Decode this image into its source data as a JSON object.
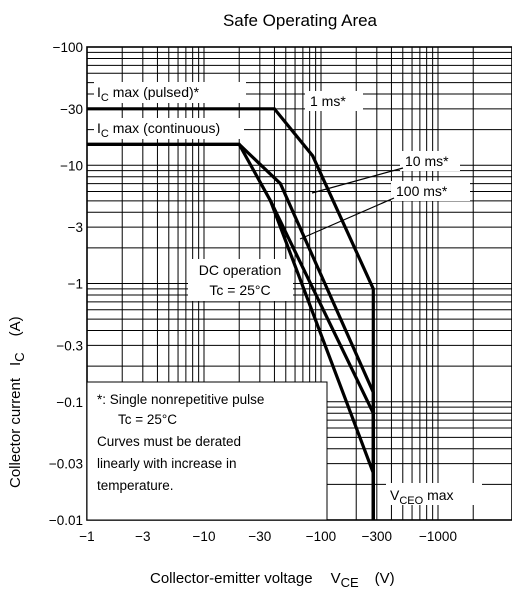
{
  "chart_data": {
    "type": "line",
    "title": "Safe Operating Area",
    "xlabel": {
      "main": "Collector-emitter voltage",
      "symbol": "V",
      "sub": "CE",
      "unit": "(V)"
    },
    "ylabel": {
      "main": "Collector current",
      "symbol": "I",
      "sub": "C",
      "unit": "(A)"
    },
    "x_scale": "log",
    "y_scale": "log",
    "xlim": [
      -1,
      -2000
    ],
    "ylim": [
      -0.01,
      -100
    ],
    "grid": true,
    "x_ticks": [
      {
        "value": -1,
        "label": "−1"
      },
      {
        "value": -3,
        "label": "−3"
      },
      {
        "value": -10,
        "label": "−10"
      },
      {
        "value": -30,
        "label": "−30"
      },
      {
        "value": -100,
        "label": "−100"
      },
      {
        "value": -300,
        "label": "−300"
      },
      {
        "value": -1000,
        "label": "−1000"
      }
    ],
    "y_ticks": [
      {
        "value": -0.01,
        "label": "−0.01"
      },
      {
        "value": -0.03,
        "label": "−0.03"
      },
      {
        "value": -0.1,
        "label": "−0.1"
      },
      {
        "value": -0.3,
        "label": "−0.3"
      },
      {
        "value": -1,
        "label": "−1"
      },
      {
        "value": -3,
        "label": "−3"
      },
      {
        "value": -10,
        "label": "−10"
      },
      {
        "value": -30,
        "label": "−30"
      },
      {
        "value": -100,
        "label": "−100"
      }
    ],
    "series": [
      {
        "name": "1 ms*",
        "points": [
          [
            -1,
            -30
          ],
          [
            -40,
            -30
          ],
          [
            -85,
            -12
          ],
          [
            -280,
            -0.9
          ],
          [
            -280,
            -0.01
          ]
        ]
      },
      {
        "name": "10 ms*",
        "points": [
          [
            -1,
            -15
          ],
          [
            -20,
            -15
          ],
          [
            -45,
            -7
          ],
          [
            -280,
            -0.12
          ],
          [
            -280,
            -0.01
          ]
        ]
      },
      {
        "name": "100 ms*",
        "points": [
          [
            -37,
            -5
          ],
          [
            -280,
            -0.08
          ],
          [
            -280,
            -0.01
          ]
        ]
      },
      {
        "name": "DC operation",
        "points": [
          [
            -1,
            -15
          ],
          [
            -20,
            -15
          ],
          [
            -37,
            -5
          ],
          [
            -280,
            -0.025
          ],
          [
            -280,
            -0.01
          ]
        ]
      }
    ],
    "annotations": {
      "ic_max_pulsed": {
        "prefix": "I",
        "sub": "C",
        "suffix": " max (pulsed)*"
      },
      "ic_max_continuous": {
        "prefix": "I",
        "sub": "C",
        "suffix": " max (continuous)"
      },
      "label_1ms": "1 ms*",
      "label_10ms": "10 ms*",
      "label_100ms": "100 ms*",
      "dc_operation": "DC operation",
      "tc_dc": "Tc = 25°C",
      "vceo_max": {
        "prefix": "V",
        "sub": "CEO",
        "suffix": " max"
      }
    },
    "note_box": {
      "line1": "*:  Single nonrepetitive pulse",
      "line2": "Tc = 25°C",
      "line3": "Curves must be derated",
      "line4": "linearly with increase in",
      "line5": "temperature."
    }
  }
}
